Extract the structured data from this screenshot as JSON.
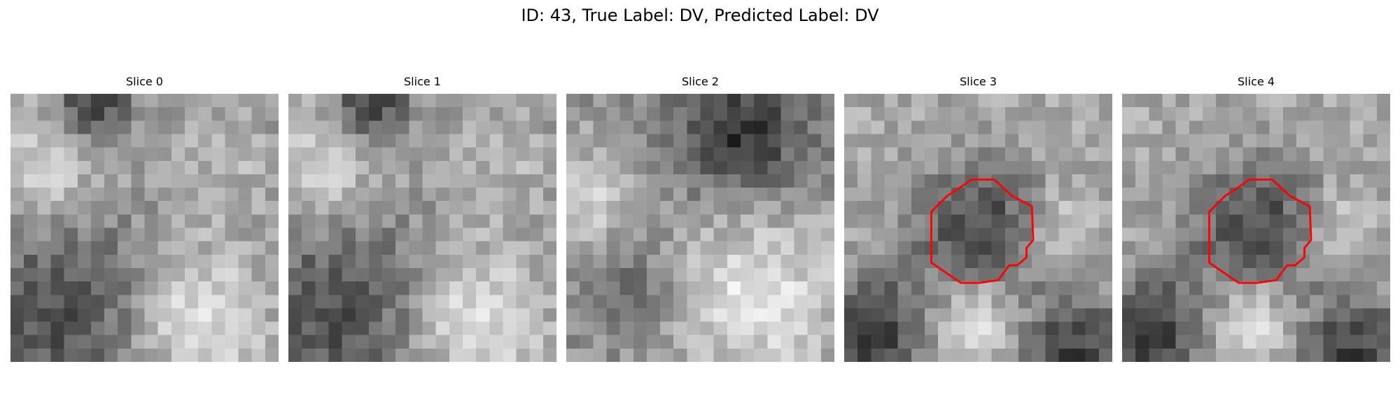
{
  "figure": {
    "title": "ID: 43, True Label: DV, Predicted Label: DV",
    "slices": [
      {
        "label": "Slice 0",
        "has_contour": false
      },
      {
        "label": "Slice 1",
        "has_contour": false
      },
      {
        "label": "Slice 2",
        "has_contour": false
      },
      {
        "label": "Slice 3",
        "has_contour": true
      },
      {
        "label": "Slice 4",
        "has_contour": true
      }
    ],
    "contour_color": "#ff0000"
  }
}
